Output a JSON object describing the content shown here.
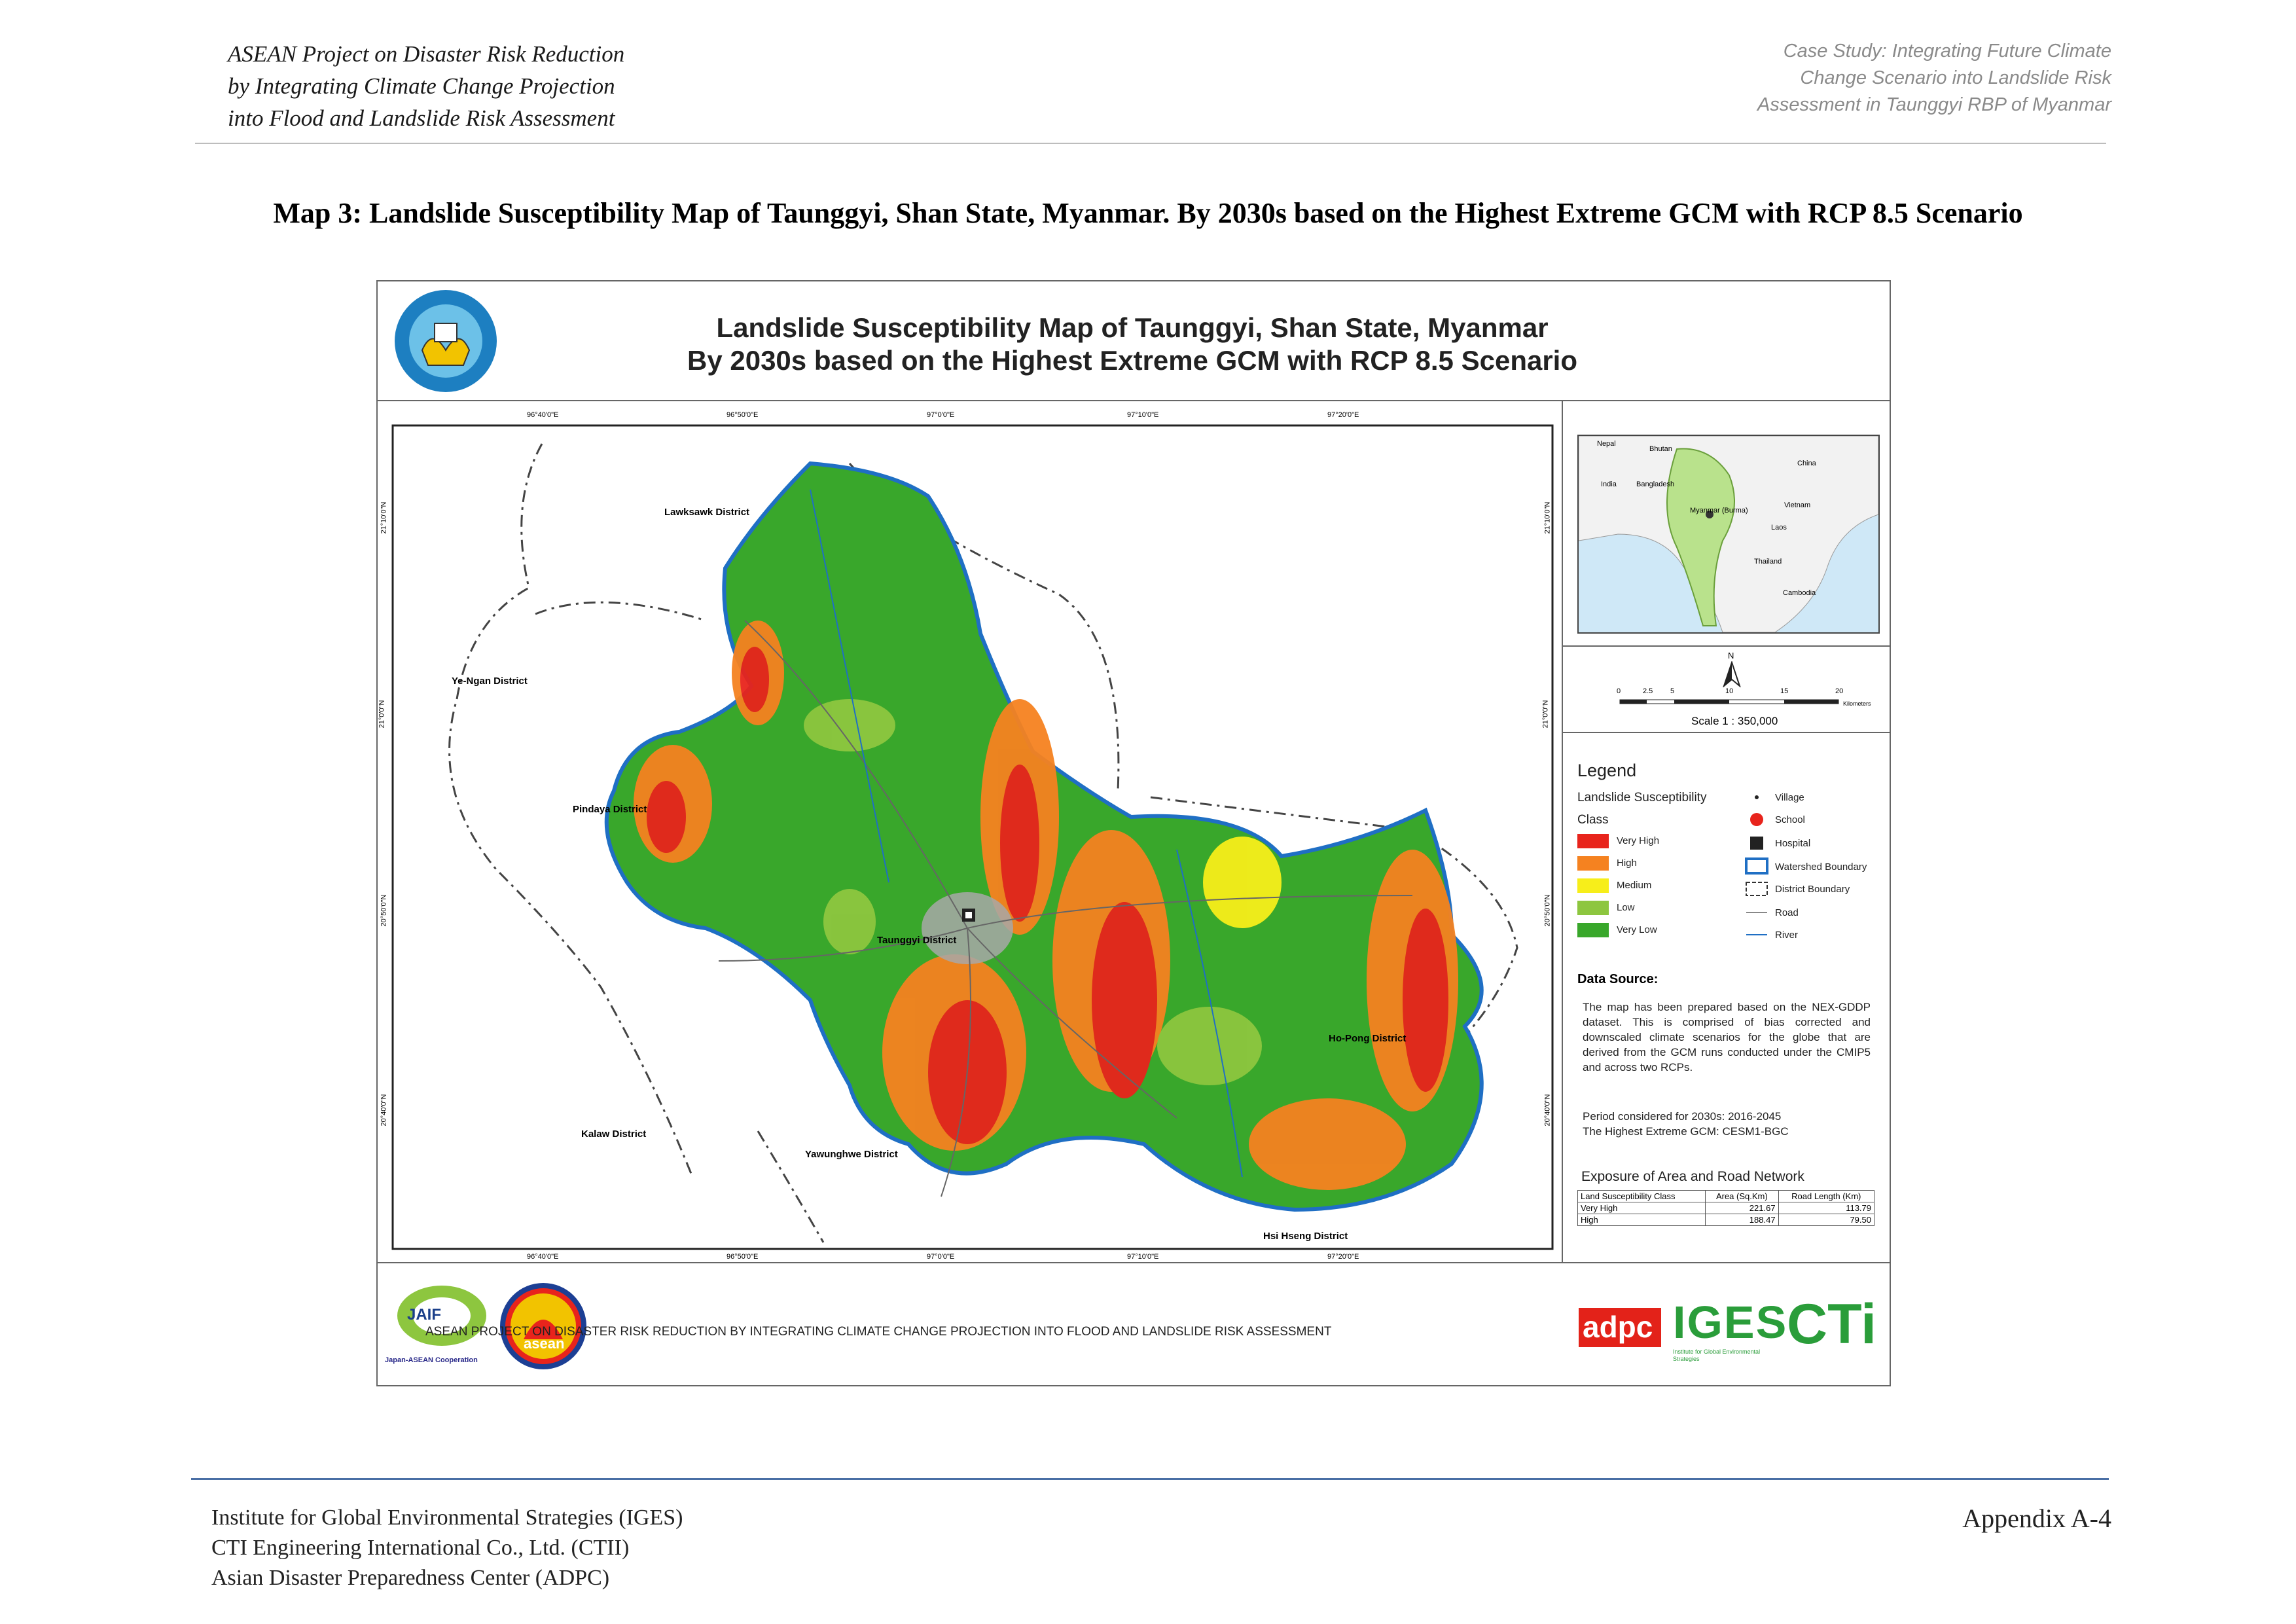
{
  "header": {
    "left_lines": [
      "ASEAN Project on Disaster Risk Reduction",
      "by Integrating Climate Change Projection",
      "into Flood and Landslide Risk Assessment"
    ],
    "right_lines": [
      "Case Study: Integrating Future Climate",
      "Change Scenario into Landslide Risk",
      "Assessment in Taunggyi RBP of Myanmar"
    ]
  },
  "doc_title": "Map 3: Landslide Susceptibility Map of Taunggyi, Shan State, Myanmar. By 2030s based on the Highest Extreme GCM with RCP 8.5 Scenario",
  "map": {
    "title_line1": "Landslide Susceptibility Map of Taunggyi, Shan State, Myanmar",
    "title_line2": "By 2030s based on the Highest Extreme GCM with RCP 8.5 Scenario",
    "lon_ticks": [
      "96°40'0\"E",
      "96°50'0\"E",
      "97°0'0\"E",
      "97°10'0\"E",
      "97°20'0\"E"
    ],
    "lat_ticks": [
      "21°10'0\"N",
      "21°0'0\"N",
      "20°50'0\"N",
      "20°40'0\"N"
    ],
    "districts": [
      "Lawksawk District",
      "Ye-Ngan District",
      "Pindaya District",
      "Taunggyi District",
      "Ho-Pong District",
      "Kalaw District",
      "Yawunghwe District",
      "Hsi Hseng District"
    ],
    "colors": {
      "very_high": "#e8241c",
      "high": "#f58220",
      "medium": "#f7ee1a",
      "low": "#8dc63f",
      "very_low": "#39a72b",
      "boundary": "#1f6fc4"
    }
  },
  "inset": {
    "labels": [
      "Nepal",
      "Bhutan",
      "India",
      "Bangladesh",
      "China",
      "Myanmar (Burma)",
      "Vietnam",
      "Laos",
      "Thailand",
      "Cambodia"
    ]
  },
  "scale": {
    "north": "N",
    "ticks": [
      "0",
      "2.5",
      "5",
      "10",
      "15",
      "20"
    ],
    "unit": "Kilometers",
    "text": "Scale 1 : 350,000"
  },
  "legend": {
    "title": "Legend",
    "susceptibility_label": "Landslide Susceptibility",
    "class_label": "Class",
    "classes": [
      {
        "label": "Very High",
        "color": "#e8241c"
      },
      {
        "label": "High",
        "color": "#f58220"
      },
      {
        "label": "Medium",
        "color": "#f7ee1a"
      },
      {
        "label": "Low",
        "color": "#8dc63f"
      },
      {
        "label": "Very Low",
        "color": "#39a72b"
      }
    ],
    "symbols": [
      "Village",
      "School",
      "Hospital",
      "Watershed Boundary",
      "District Boundary",
      "Road",
      "River"
    ]
  },
  "data_source": {
    "title": "Data Source:",
    "text": "The map has been prepared based on the NEX-GDDP dataset. This is comprised of bias corrected and downscaled climate scenarios for the globe that are derived from the GCM runs conducted under the CMIP5 and across two RCPs.",
    "period": "Period considered for 2030s: 2016-2045",
    "gcm": "The Highest Extreme GCM: CESM1-BGC"
  },
  "exposure": {
    "title": "Exposure of Area and Road Network",
    "headers": [
      "Land Susceptibility Class",
      "Area (Sq.Km)",
      "Road Length (Km)"
    ],
    "rows": [
      {
        "cls": "Very High",
        "area": "221.67",
        "road": "113.79"
      },
      {
        "cls": "High",
        "area": "188.47",
        "road": "79.50"
      }
    ]
  },
  "footer_band": {
    "text": "ASEAN PROJECT ON DISASTER RISK REDUCTION BY INTEGRATING CLIMATE CHANGE PROJECTION INTO FLOOD AND LANDSLIDE RISK ASSESSMENT",
    "logos": [
      "JAIF",
      "Japan-ASEAN Cooperation",
      "asean",
      "adpc",
      "IGES",
      "Institute for Global Environmental Strategies",
      "CTi"
    ]
  },
  "footer": {
    "left_lines": [
      "Institute for Global Environmental Strategies (IGES)",
      "CTI Engineering International Co., Ltd. (CTII)",
      "Asian Disaster Preparedness Center (ADPC)"
    ],
    "right": "Appendix A-4"
  }
}
